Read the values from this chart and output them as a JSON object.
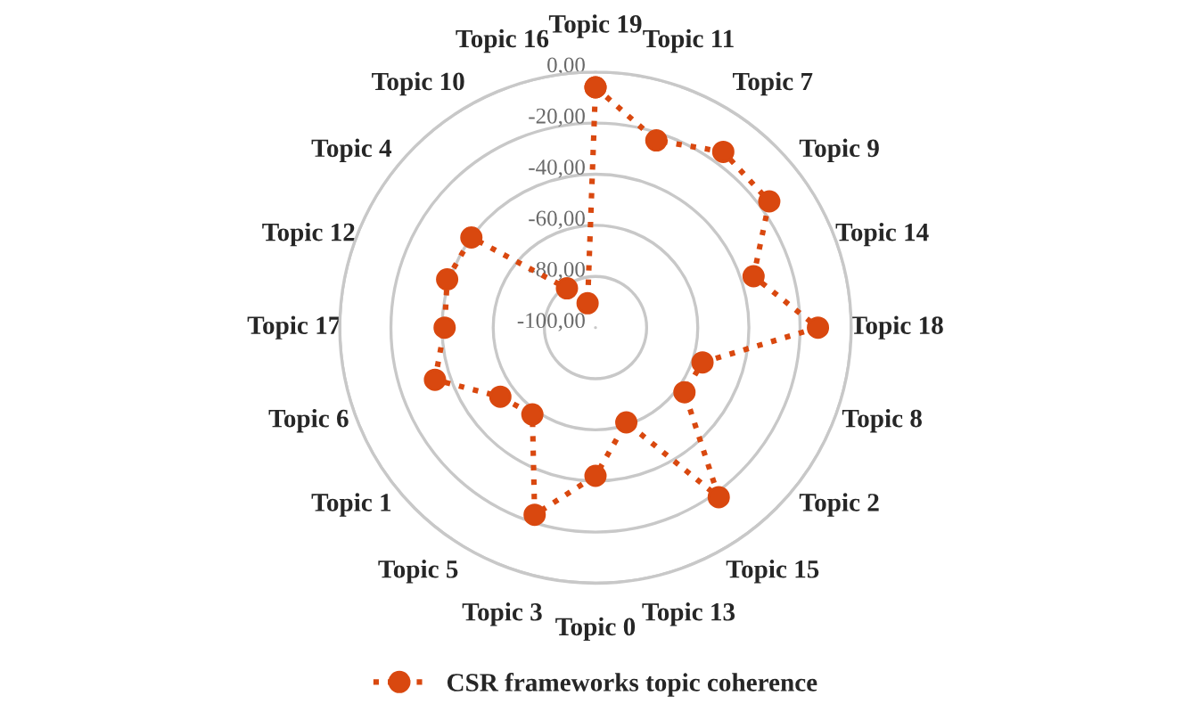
{
  "chart_data": {
    "type": "radar",
    "categories": [
      "Topic 19",
      "Topic 11",
      "Topic 7",
      "Topic 9",
      "Topic 14",
      "Topic 18",
      "Topic 8",
      "Topic 2",
      "Topic 15",
      "Topic 13",
      "Topic 0",
      "Topic 3",
      "Topic 5",
      "Topic 1",
      "Topic 6",
      "Topic 17",
      "Topic 12",
      "Topic 4",
      "Topic 10",
      "Topic 16"
    ],
    "series": [
      {
        "name": "CSR frameworks topic coherence",
        "color": "#d9480f",
        "values": [
          -6,
          -23,
          -15,
          -16,
          -35,
          -13,
          -56,
          -57,
          -18,
          -61,
          -42,
          -23,
          -58,
          -54,
          -34,
          -41,
          -39,
          -40,
          -81,
          -90
        ]
      }
    ],
    "ylim": [
      -100,
      0
    ],
    "yticks": [
      {
        "value": 0,
        "label": "0,00"
      },
      {
        "value": -20,
        "label": "-20,00"
      },
      {
        "value": -40,
        "label": "-40,00"
      },
      {
        "value": -60,
        "label": "-60,00"
      },
      {
        "value": -80,
        "label": "-80,00"
      },
      {
        "value": -100,
        "label": "-100,00"
      }
    ],
    "grid": "y",
    "legend": "bottom",
    "marker": "circle",
    "line_style": "dotted"
  }
}
